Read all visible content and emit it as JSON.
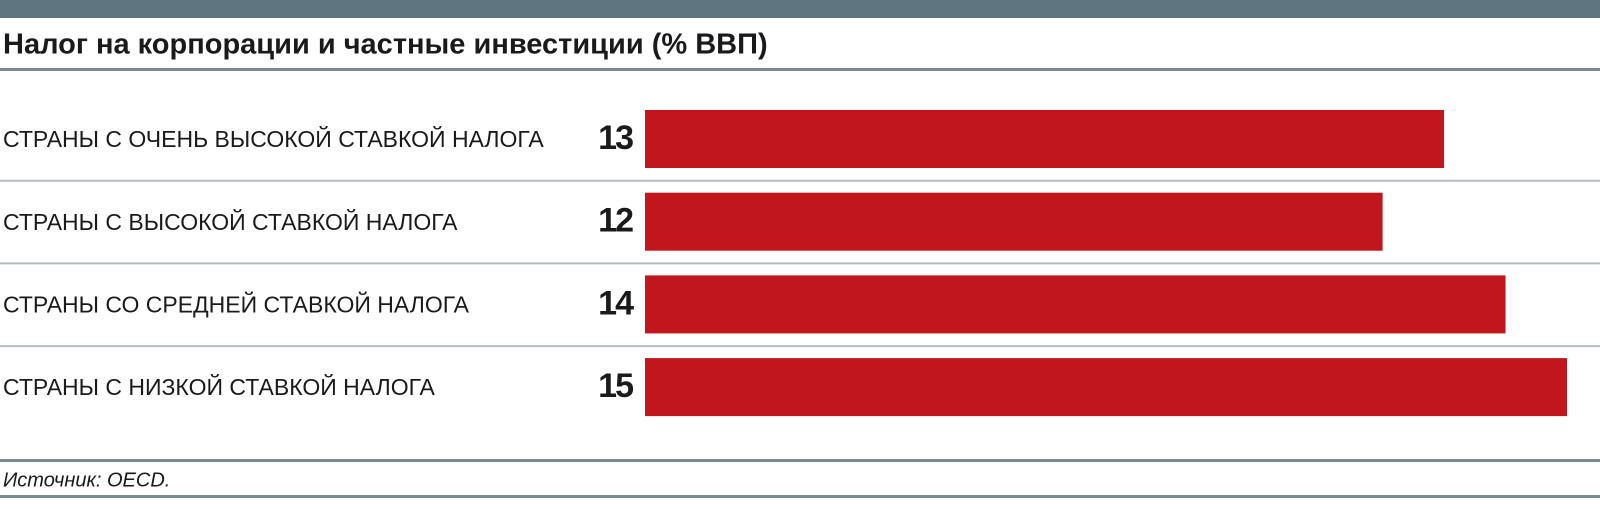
{
  "chart_data": {
    "type": "bar",
    "orientation": "horizontal",
    "title": "Налог на корпорации и частные инвестиции (% ВВП)",
    "categories": [
      "СТРАНЫ С ОЧЕНЬ ВЫСОКОЙ СТАВКОЙ НАЛОГА",
      "СТРАНЫ С ВЫСОКОЙ СТАВКОЙ НАЛОГА",
      "СТРАНЫ СО СРЕДНЕЙ СТАВКОЙ НАЛОГА",
      "СТРАНЫ С НИЗКОЙ СТАВКОЙ НАЛОГА"
    ],
    "values": [
      13,
      12,
      14,
      15
    ],
    "color": "#c1161d",
    "xlim": [
      0,
      15
    ],
    "source": "Источник: OECD."
  }
}
